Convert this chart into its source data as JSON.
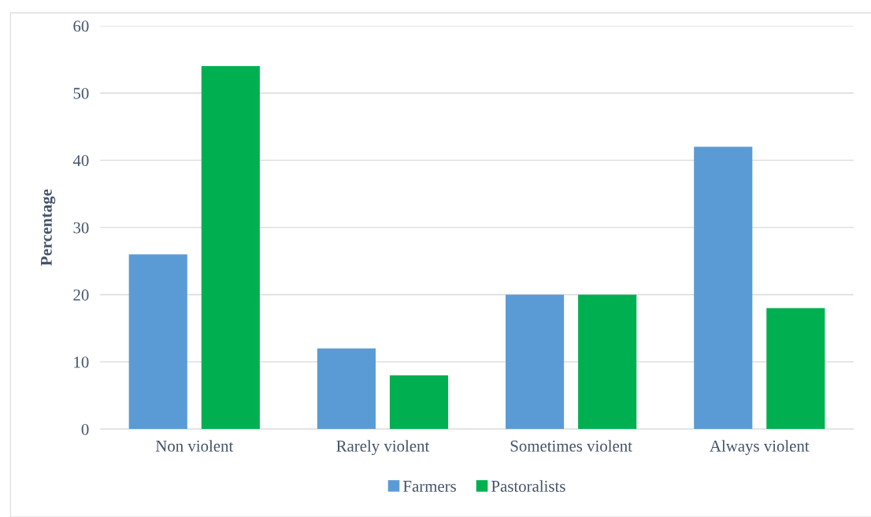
{
  "chart_data": {
    "type": "bar",
    "ylabel": "Percentage",
    "categories": [
      "Non violent",
      "Rarely violent",
      "Sometimes violent",
      "Always violent"
    ],
    "series": [
      {
        "name": "Farmers",
        "color": "#5b9bd5",
        "values": [
          26,
          12,
          20,
          42
        ]
      },
      {
        "name": "Pastoralists",
        "color": "#00b050",
        "values": [
          54,
          8,
          20,
          18
        ]
      }
    ],
    "ylim": [
      0,
      60
    ],
    "yticks": [
      0,
      10,
      20,
      30,
      40,
      50,
      60
    ],
    "grid": "y",
    "legend": "bottom"
  }
}
